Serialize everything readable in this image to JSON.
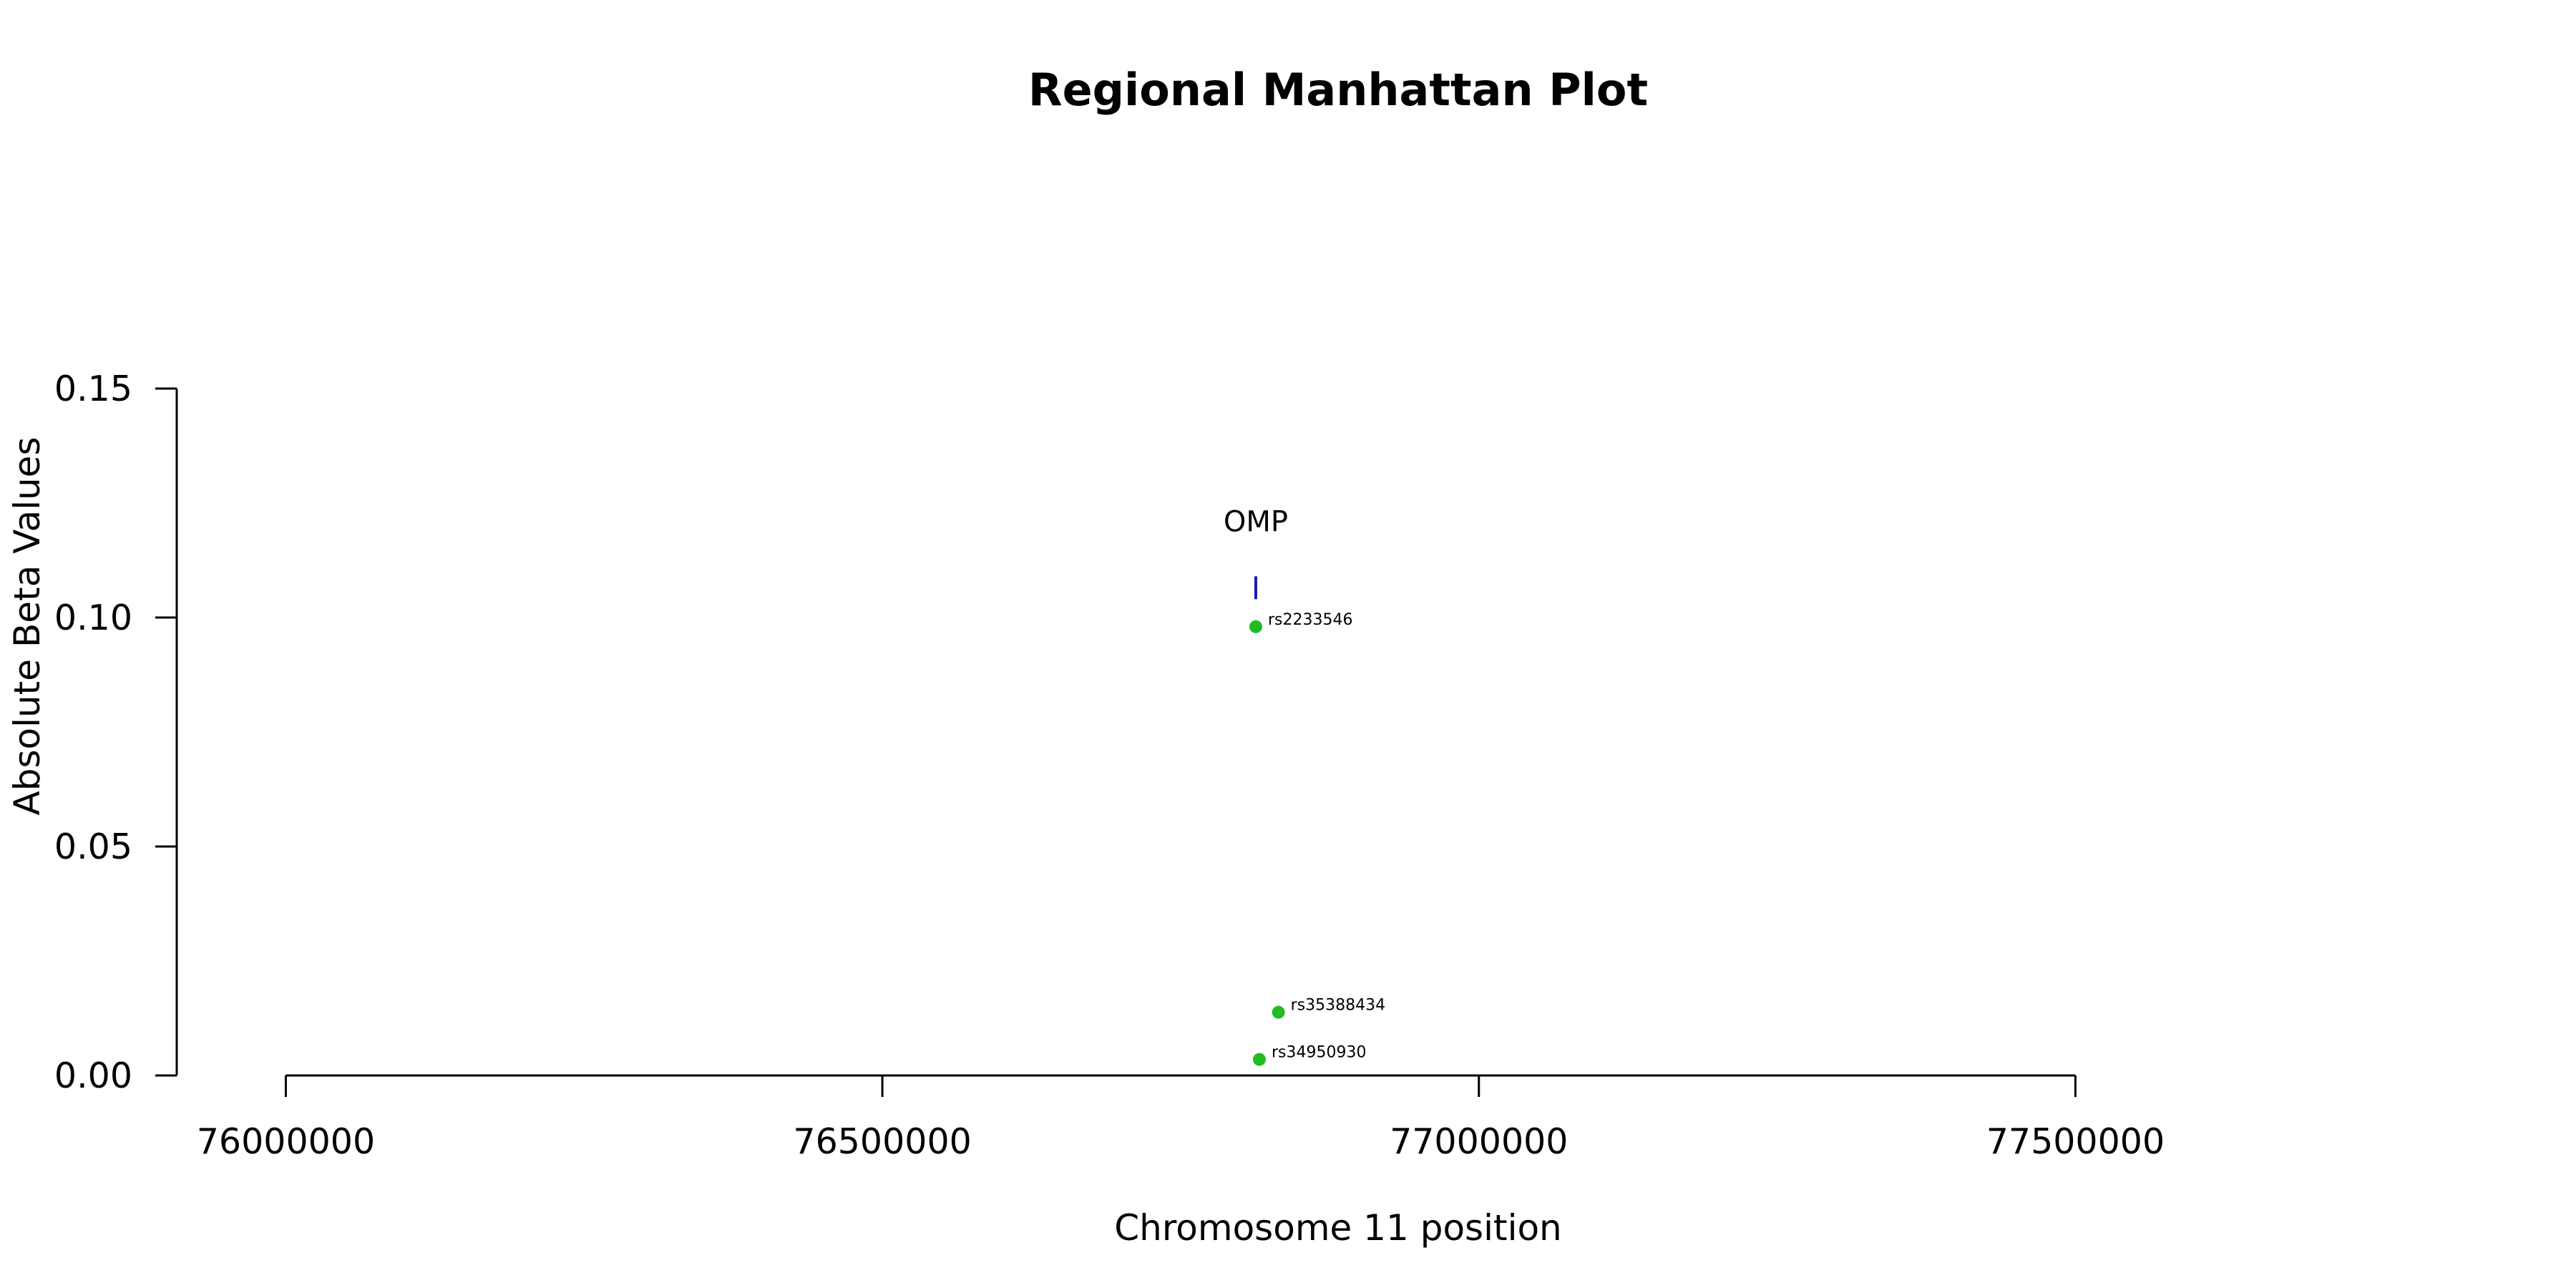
{
  "chart_data": {
    "type": "scatter",
    "title": "Regional Manhattan Plot",
    "xlabel": "Chromosome 11 position",
    "ylabel": "Absolute Beta Values",
    "xlim": [
      75815000,
      77865000
    ],
    "ylim": [
      0,
      0.15
    ],
    "x_ticks": [
      76000000,
      76500000,
      77000000,
      77500000
    ],
    "x_tick_labels": [
      "76000000",
      "76500000",
      "77000000",
      "77500000"
    ],
    "y_ticks": [
      0,
      0.05,
      0.1,
      0.15
    ],
    "y_tick_labels": [
      "0.00",
      "0.05",
      "0.10",
      "0.15"
    ],
    "grid": false,
    "point_color": "#22bb22",
    "gene_color": "#1a1aaa",
    "points": [
      {
        "label": "rs2233546",
        "x": 76813000,
        "y": 0.098
      },
      {
        "label": "rs35388434",
        "x": 76832000,
        "y": 0.0138
      },
      {
        "label": "rs34950930",
        "x": 76816000,
        "y": 0.0035
      }
    ],
    "genes": [
      {
        "name": "OMP",
        "x": 76813000,
        "y_low": 0.104,
        "y_high": 0.109,
        "label_y": 0.121
      }
    ]
  }
}
